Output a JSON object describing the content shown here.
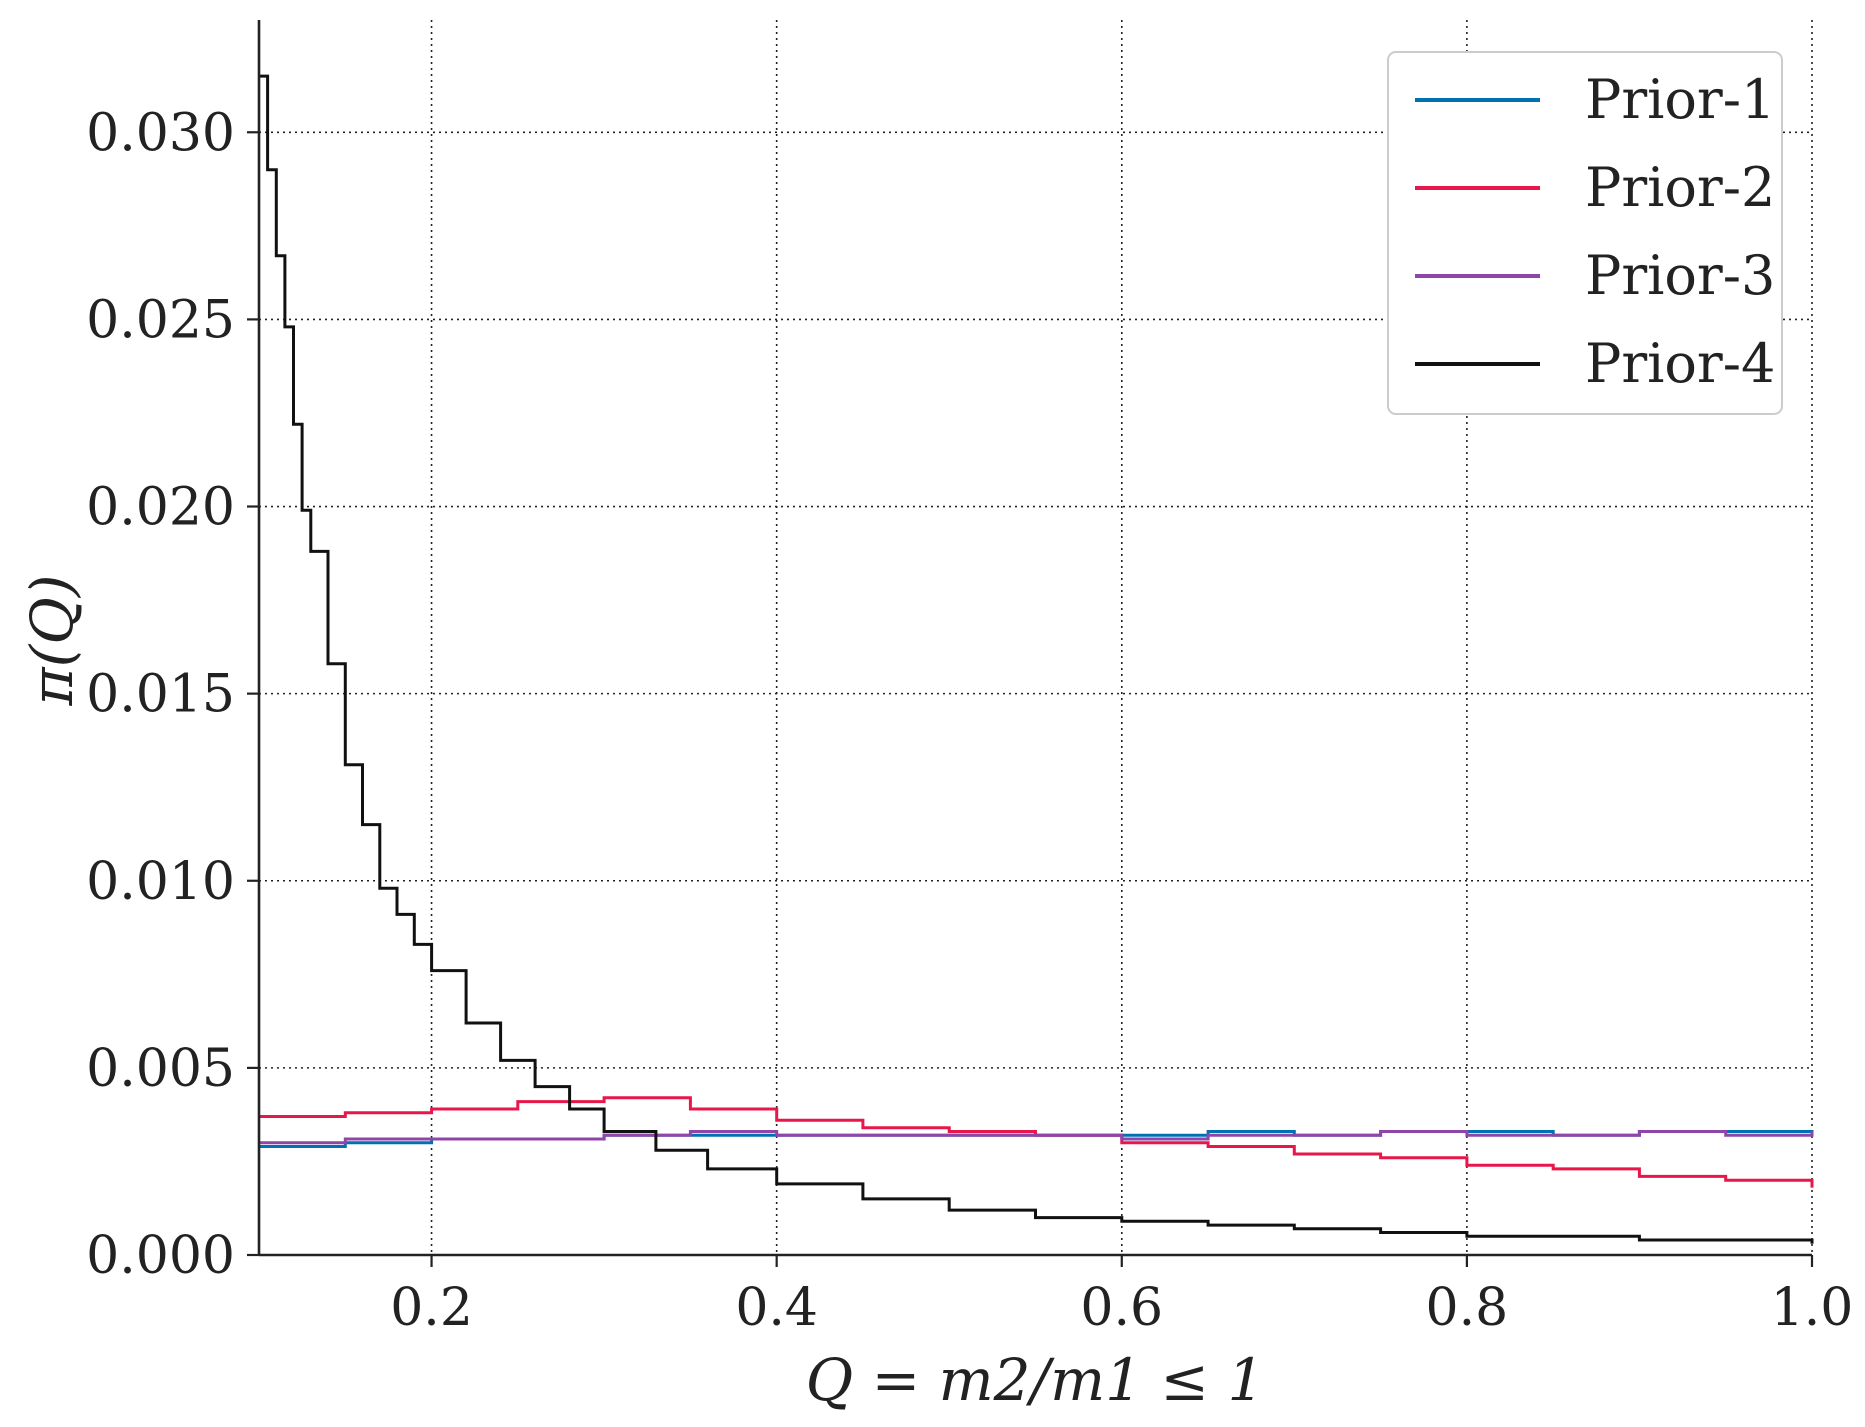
{
  "chart_data": {
    "type": "line",
    "drawstyle": "steps",
    "title": "",
    "xlabel": "Q = m2/m1 ≤ 1",
    "ylabel": "π(Q)",
    "xlim": [
      0.1,
      1.0
    ],
    "ylim": [
      0.0,
      0.033
    ],
    "xticks": [
      0.2,
      0.4,
      0.6,
      0.8,
      1.0
    ],
    "xtick_labels": [
      "0.2",
      "0.4",
      "0.6",
      "0.8",
      "1.0"
    ],
    "yticks": [
      0.0,
      0.005,
      0.01,
      0.015,
      0.02,
      0.025,
      0.03
    ],
    "ytick_labels": [
      "0.000",
      "0.005",
      "0.010",
      "0.015",
      "0.020",
      "0.025",
      "0.030"
    ],
    "grid": true,
    "legend_position": "top-right",
    "series": [
      {
        "name": "Prior-1",
        "color": "#0072b2",
        "x": [
          0.1,
          0.15,
          0.2,
          0.25,
          0.3,
          0.35,
          0.4,
          0.45,
          0.5,
          0.55,
          0.6,
          0.65,
          0.7,
          0.75,
          0.8,
          0.85,
          0.9,
          0.95,
          1.0
        ],
        "y": [
          0.0029,
          0.003,
          0.0031,
          0.0031,
          0.0032,
          0.0032,
          0.0032,
          0.0032,
          0.0032,
          0.0032,
          0.0032,
          0.0033,
          0.0032,
          0.0033,
          0.0033,
          0.0032,
          0.0033,
          0.0033,
          0.0032
        ]
      },
      {
        "name": "Prior-2",
        "color": "#e8174a",
        "x": [
          0.1,
          0.15,
          0.2,
          0.25,
          0.3,
          0.35,
          0.4,
          0.45,
          0.5,
          0.55,
          0.6,
          0.65,
          0.7,
          0.75,
          0.8,
          0.85,
          0.9,
          0.95,
          1.0
        ],
        "y": [
          0.0037,
          0.0038,
          0.0039,
          0.0041,
          0.0042,
          0.0039,
          0.0036,
          0.0034,
          0.0033,
          0.0032,
          0.003,
          0.0029,
          0.0027,
          0.0026,
          0.0024,
          0.0023,
          0.0021,
          0.002,
          0.0018
        ]
      },
      {
        "name": "Prior-3",
        "color": "#9045a8",
        "x": [
          0.1,
          0.15,
          0.2,
          0.25,
          0.3,
          0.35,
          0.4,
          0.45,
          0.5,
          0.55,
          0.6,
          0.65,
          0.7,
          0.75,
          0.8,
          0.85,
          0.9,
          0.95,
          1.0
        ],
        "y": [
          0.003,
          0.0031,
          0.0031,
          0.0031,
          0.0032,
          0.0033,
          0.0032,
          0.0032,
          0.0032,
          0.0032,
          0.0031,
          0.0032,
          0.0032,
          0.0033,
          0.0032,
          0.0032,
          0.0033,
          0.0032,
          0.0033
        ]
      },
      {
        "name": "Prior-4",
        "color": "#111111",
        "x": [
          0.1,
          0.105,
          0.11,
          0.115,
          0.12,
          0.125,
          0.13,
          0.14,
          0.15,
          0.16,
          0.17,
          0.18,
          0.19,
          0.2,
          0.22,
          0.24,
          0.26,
          0.28,
          0.3,
          0.33,
          0.36,
          0.4,
          0.45,
          0.5,
          0.55,
          0.6,
          0.65,
          0.7,
          0.75,
          0.8,
          0.85,
          0.9,
          0.95,
          1.0
        ],
        "y": [
          0.0315,
          0.029,
          0.0267,
          0.0248,
          0.0222,
          0.0199,
          0.0188,
          0.0158,
          0.0131,
          0.0115,
          0.0098,
          0.0091,
          0.0083,
          0.0076,
          0.0062,
          0.0052,
          0.0045,
          0.0039,
          0.0033,
          0.0028,
          0.0023,
          0.0019,
          0.0015,
          0.0012,
          0.001,
          0.0009,
          0.0008,
          0.0007,
          0.0006,
          0.0005,
          0.0005,
          0.0004,
          0.0004,
          0.0003
        ]
      }
    ]
  }
}
